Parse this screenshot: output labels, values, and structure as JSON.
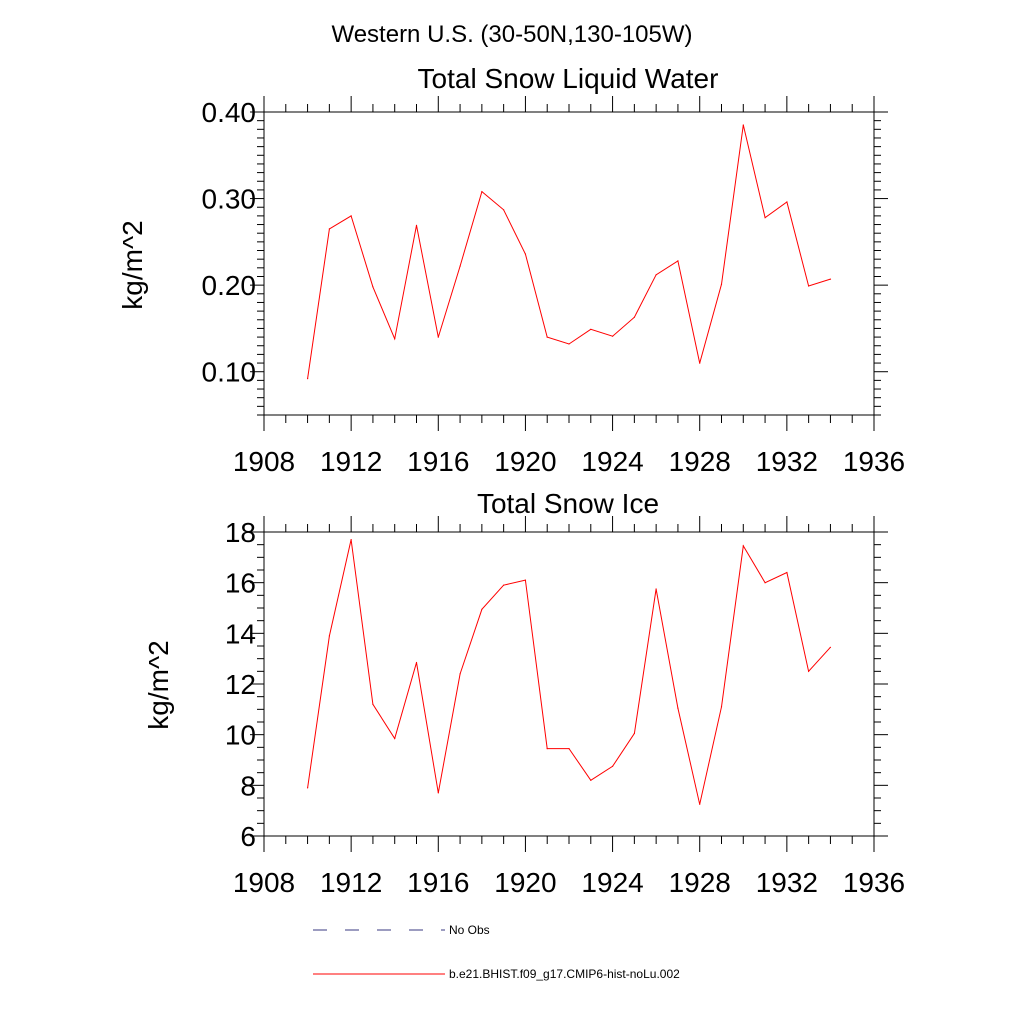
{
  "figure": {
    "supertitle": "Western U.S. (30-50N,130-105W)"
  },
  "legend": {
    "entries": [
      {
        "label": "No Obs",
        "color": "#3a3a80",
        "style": "dashed"
      },
      {
        "label": "b.e21.BHIST.f09_g17.CMIP6-hist-noLu.002",
        "color": "#ff0000",
        "style": "solid"
      }
    ]
  },
  "chart_data": [
    {
      "type": "line",
      "title": "Total Snow Liquid Water",
      "ylabel": "kg/m^2",
      "xlabel": "",
      "xlim": [
        1908,
        1936
      ],
      "ylim": [
        0.05,
        0.4
      ],
      "xticks": [
        "1908",
        "1912",
        "1916",
        "1920",
        "1924",
        "1928",
        "1932",
        "1936"
      ],
      "yticks": [
        "0.10",
        "0.20",
        "0.30",
        "0.40"
      ],
      "grid": false,
      "series": [
        {
          "name": "b.e21.BHIST.f09_g17.CMIP6-hist-noLu.002",
          "color": "#ff0000",
          "x": [
            1910,
            1911,
            1912,
            1913,
            1914,
            1915,
            1916,
            1917,
            1918,
            1919,
            1920,
            1921,
            1922,
            1923,
            1924,
            1925,
            1926,
            1927,
            1928,
            1929,
            1930,
            1931,
            1932,
            1933,
            1934
          ],
          "y": [
            0.092,
            0.265,
            0.28,
            0.198,
            0.138,
            0.269,
            0.14,
            0.222,
            0.308,
            0.287,
            0.236,
            0.14,
            0.132,
            0.149,
            0.141,
            0.163,
            0.212,
            0.228,
            0.11,
            0.201,
            0.385,
            0.278,
            0.296,
            0.199,
            0.207
          ]
        }
      ]
    },
    {
      "type": "line",
      "title": "Total Snow Ice",
      "ylabel": "kg/m^2",
      "xlabel": "",
      "xlim": [
        1908,
        1936
      ],
      "ylim": [
        6,
        18
      ],
      "xticks": [
        "1908",
        "1912",
        "1916",
        "1920",
        "1924",
        "1928",
        "1932",
        "1936"
      ],
      "yticks": [
        "6",
        "8",
        "10",
        "12",
        "14",
        "16",
        "18"
      ],
      "grid": false,
      "series": [
        {
          "name": "b.e21.BHIST.f09_g17.CMIP6-hist-noLu.002",
          "color": "#ff0000",
          "x": [
            1910,
            1911,
            1912,
            1913,
            1914,
            1915,
            1916,
            1917,
            1918,
            1919,
            1920,
            1921,
            1922,
            1923,
            1924,
            1925,
            1926,
            1927,
            1928,
            1929,
            1930,
            1931,
            1932,
            1933,
            1934
          ],
          "y": [
            7.9,
            13.9,
            17.7,
            11.2,
            9.85,
            12.85,
            7.7,
            12.4,
            14.95,
            15.9,
            16.1,
            9.45,
            9.45,
            8.2,
            8.75,
            10.05,
            15.75,
            11.05,
            7.25,
            11.1,
            17.45,
            16.0,
            16.4,
            12.5,
            13.45
          ]
        }
      ]
    }
  ]
}
